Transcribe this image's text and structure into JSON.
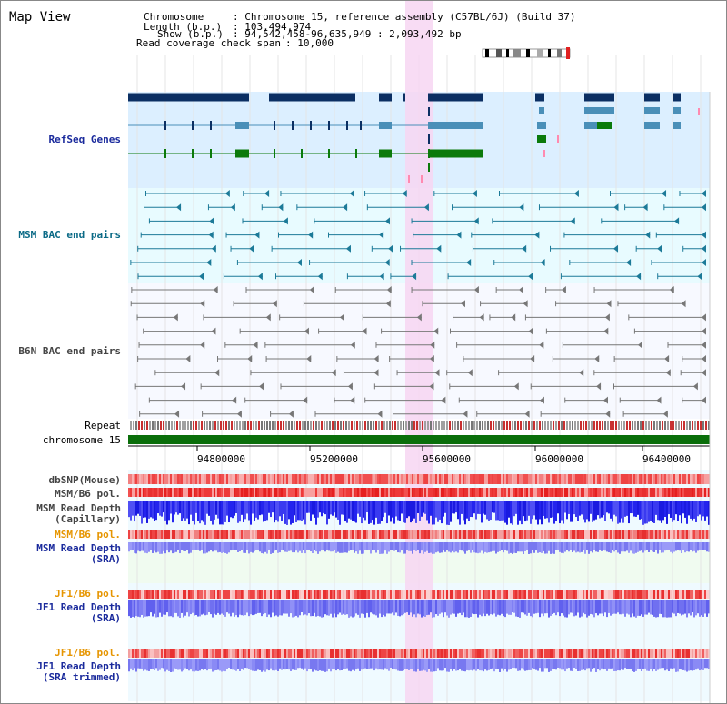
{
  "view_title": "Map View",
  "info": {
    "chromosome_label": "Chromosome",
    "chromosome_value": ": Chromosome 15, reference assembly (C57BL/6J) (Build 37)",
    "length_label": "Length (b.p.)",
    "length_value": ": 103,494,974",
    "show_label": "Show (b.p.)",
    "show_value": ": 94,542,458-96,635,949 : 2,093,492 bp",
    "coverage_label": "Read coverage check span",
    "coverage_value": ": 10,000"
  },
  "tracks": {
    "refseq": "RefSeq Genes",
    "msm_bac": "MSM BAC end pairs",
    "b6n_bac": "B6N BAC end pairs",
    "repeat": "Repeat",
    "chromosome": "chromosome 15",
    "dbsnp": "dbSNP(Mouse)",
    "msm_b6_pol_1": "MSM/B6 pol.",
    "msm_depth_cap_1": "MSM Read Depth",
    "msm_depth_cap_2": "(Capillary)",
    "msm_b6_pol_2": "MSM/B6 pol.",
    "msm_depth_sra_1": "MSM Read Depth",
    "msm_depth_sra_2": "(SRA)",
    "jf1_b6_pol_1": "JF1/B6 pol.",
    "jf1_depth_sra_1": "JF1 Read Depth",
    "jf1_depth_sra_2": "(SRA)",
    "jf1_b6_pol_2": "JF1/B6 pol.",
    "jf1_depth_trim_1": "JF1 Read Depth",
    "jf1_depth_trim_2": "(SRA trimmed)"
  },
  "axis_ticks": [
    "94800000",
    "95200000",
    "95600000",
    "96000000",
    "96400000"
  ],
  "colors": {
    "refseq_bg": "#dcefff",
    "bac_bg": "#e8fbff",
    "highlight": "#f7d6f2",
    "navy_gene": "#0b2f63",
    "steel_gene": "#4a8fb8",
    "green_gene": "#0b7a0b",
    "chromosome_bar": "#0a6e0a",
    "depth_blue": "#2a2ae0"
  }
}
